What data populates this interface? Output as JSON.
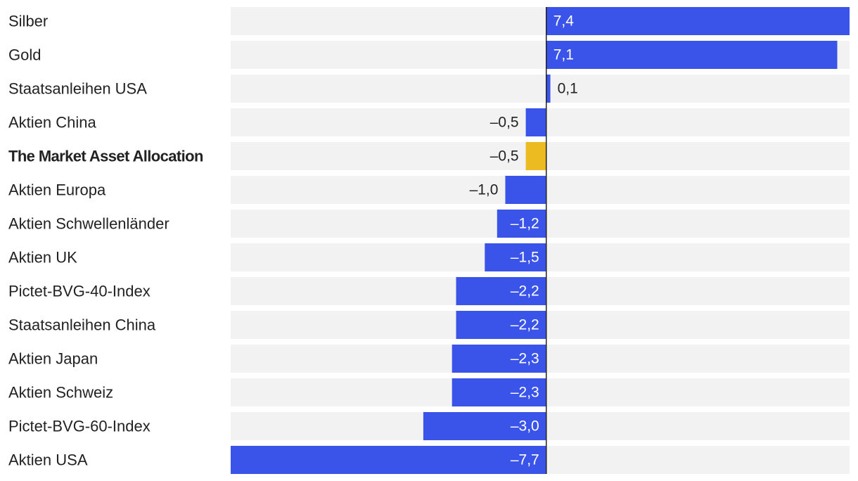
{
  "chart_data": {
    "type": "bar",
    "orientation": "horizontal",
    "title": "",
    "xlabel": "",
    "ylabel": "",
    "xlim": [
      -7.7,
      7.4
    ],
    "grid": false,
    "decimal_separator": ",",
    "categories": [
      "Silber",
      "Gold",
      "Staatsanleihen USA",
      "Aktien China",
      "The Market Asset Allocation",
      "Aktien Europa",
      "Aktien Schwellenländer",
      "Aktien UK",
      "Pictet-BVG-40-Index",
      "Staatsanleihen China",
      "Aktien Japan",
      "Aktien Schweiz",
      "Pictet-BVG-60-Index",
      "Aktien USA"
    ],
    "values": [
      7.4,
      7.1,
      0.1,
      -0.5,
      -0.5,
      -1.0,
      -1.2,
      -1.5,
      -2.2,
      -2.2,
      -2.3,
      -2.3,
      -3.0,
      -7.7
    ],
    "value_labels": [
      "7,4",
      "7,1",
      "0,1",
      "–0,5",
      "–0,5",
      "–1,0",
      "–1,2",
      "–1,5",
      "–2,2",
      "–2,2",
      "–2,3",
      "–2,3",
      "–3,0",
      "–7,7"
    ],
    "highlight": [
      "The Market Asset Allocation"
    ],
    "colors": {
      "bar": "#3a54ea",
      "highlight_bar": "#ebbb21",
      "track": "#f2f2f2",
      "zero_line": "#222222",
      "label_inside": "#ffffff",
      "label_outside": "#222222",
      "category_text": "#222222"
    }
  }
}
